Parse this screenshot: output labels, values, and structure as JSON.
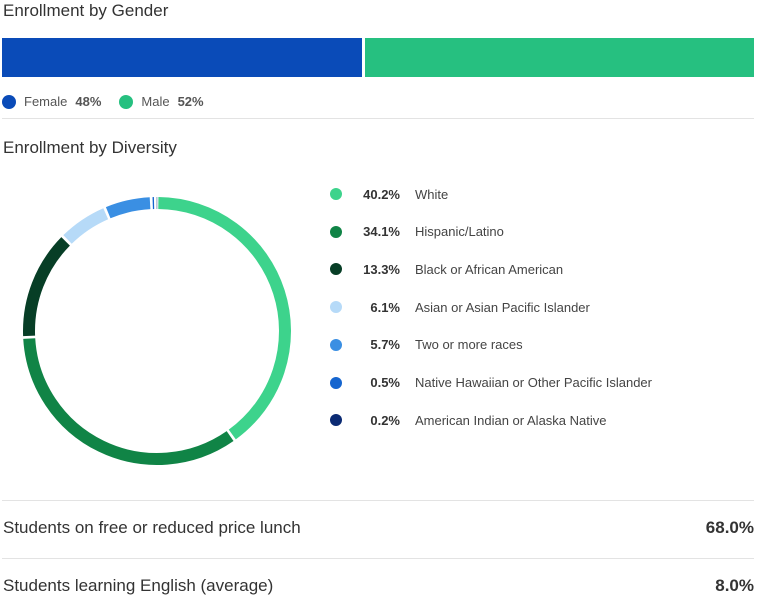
{
  "gender": {
    "title": "Enrollment by Gender",
    "segments": [
      {
        "label": "Female",
        "value": "48%",
        "pct": 48,
        "color": "#0a4bb8"
      },
      {
        "label": "Male",
        "value": "52%",
        "pct": 52,
        "color": "#26c080"
      }
    ]
  },
  "diversity": {
    "title": "Enrollment by Diversity",
    "items": [
      {
        "value": "40.2%",
        "label": "White",
        "color": "#3dd38c"
      },
      {
        "value": "34.1%",
        "label": "Hispanic/Latino",
        "color": "#108446"
      },
      {
        "value": "13.3%",
        "label": "Black or African American",
        "color": "#073e26"
      },
      {
        "value": "6.1%",
        "label": "Asian or Asian Pacific Islander",
        "color": "#b6daf8"
      },
      {
        "value": "5.7%",
        "label": "Two or more races",
        "color": "#3a8fe3"
      },
      {
        "value": "0.5%",
        "label": "Native Hawaiian or Other Pacific Islander",
        "color": "#1565cf"
      },
      {
        "value": "0.2%",
        "label": "American Indian or Alaska Native",
        "color": "#0b2a73"
      }
    ]
  },
  "stats": [
    {
      "label": "Students on free or reduced price lunch",
      "value": "68.0%"
    },
    {
      "label": "Students learning English (average)",
      "value": "8.0%"
    }
  ],
  "chart_data": [
    {
      "type": "bar",
      "title": "Enrollment by Gender",
      "stacked": true,
      "orientation": "horizontal",
      "categories": [
        "Female",
        "Male"
      ],
      "values": [
        48,
        52
      ],
      "legend": "bottom-left"
    },
    {
      "type": "pie",
      "title": "Enrollment by Diversity",
      "donut": true,
      "categories": [
        "White",
        "Hispanic/Latino",
        "Black or African American",
        "Asian or Asian Pacific Islander",
        "Two or more races",
        "Native Hawaiian or Other Pacific Islander",
        "American Indian or Alaska Native"
      ],
      "values": [
        40.2,
        34.1,
        13.3,
        6.1,
        5.7,
        0.5,
        0.2
      ],
      "legend": "right"
    }
  ]
}
